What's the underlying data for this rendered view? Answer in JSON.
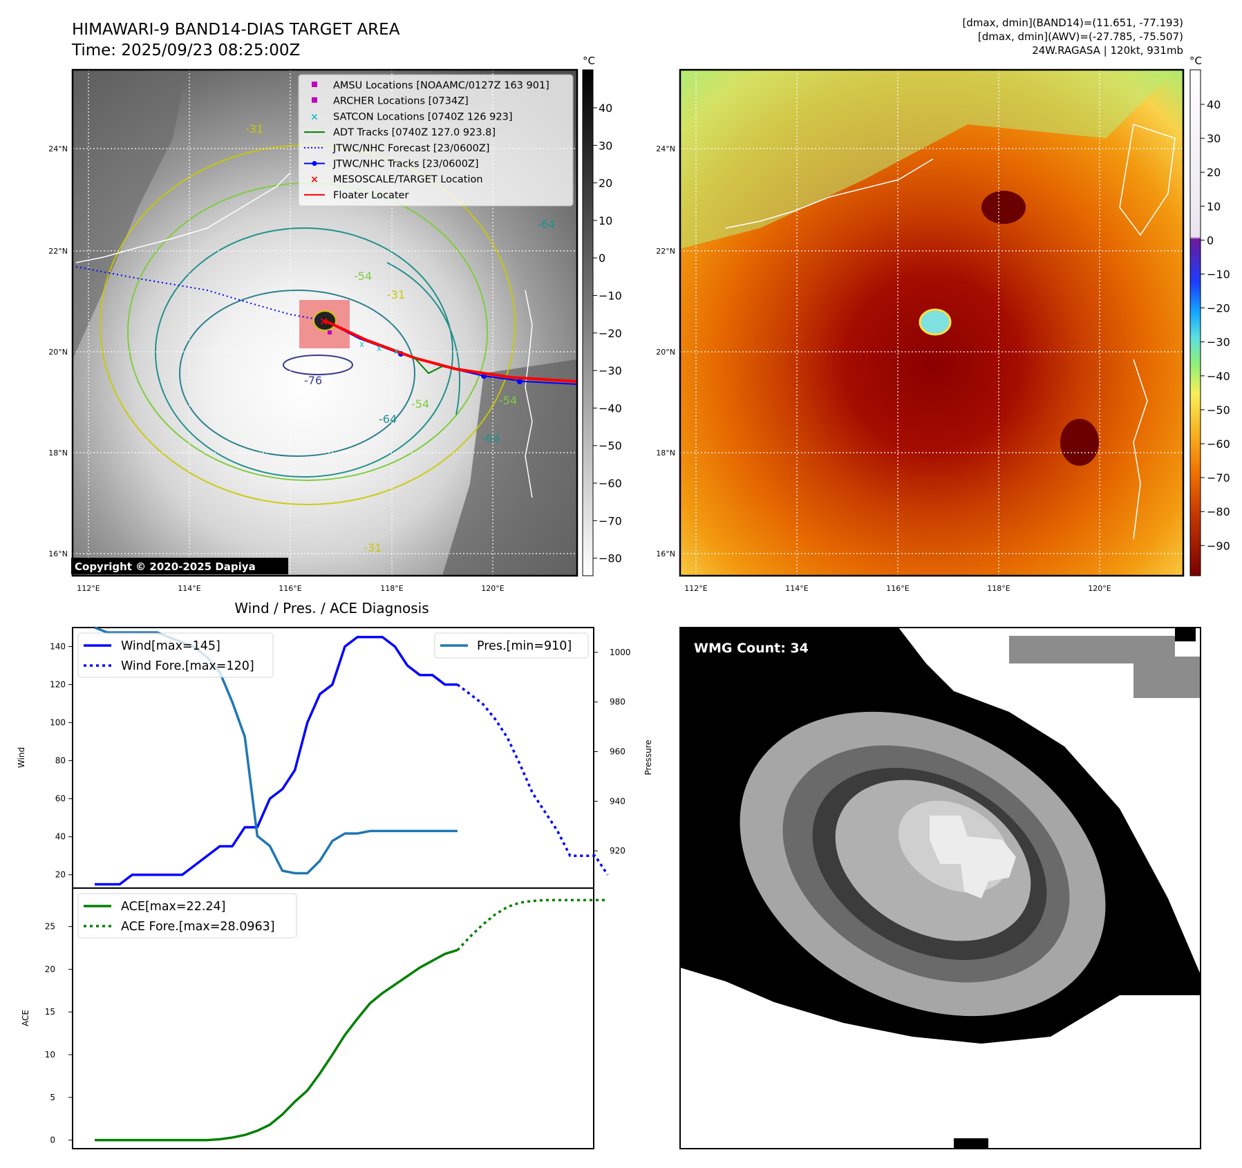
{
  "header": {
    "title_line1": "HIMAWARI-9 BAND14-DIAS TARGET AREA",
    "title_line2": "Time: 2025/09/23 08:25:00Z",
    "info_line1": "[dmax, dmin](BAND14)=(11.651, -77.193)",
    "info_line2": "[dmax, dmin](AWV)=(-27.785, -75.507)",
    "info_line3": "24W.RAGASA | 120kt, 931mb"
  },
  "map": {
    "lon_labels": [
      "112°E",
      "114°E",
      "116°E",
      "118°E",
      "120°E"
    ],
    "lat_labels": [
      "24°N",
      "22°N",
      "20°N",
      "18°N",
      "16°N"
    ],
    "copyright": "Copyright © 2020-2025 Dapiya",
    "contour_labels": [
      "-31",
      "-54",
      "-64",
      "-76",
      "-64",
      "-54",
      "-64",
      "-54",
      "-31",
      "-31"
    ],
    "colorbar_unit": "°C",
    "colorbar_ticks": [
      "40",
      "30",
      "20",
      "10",
      "0",
      "−10",
      "−20",
      "−30",
      "−40",
      "−50",
      "−60",
      "−70",
      "−80"
    ],
    "legend": [
      {
        "label": "AMSU Locations [NOAAMC/0127Z 163 901]",
        "marker": "square",
        "color": "#bf00bf"
      },
      {
        "label": "ARCHER Locations [0734Z]",
        "marker": "square",
        "color": "#bf00bf"
      },
      {
        "label": "SATCON Locations [0740Z 126 923]",
        "marker": "x",
        "color": "#17becf"
      },
      {
        "label": "ADT Tracks [0740Z 127.0 923.8]",
        "marker": "line",
        "color": "#008000"
      },
      {
        "label": "JTWC/NHC Forecast [23/0600Z]",
        "marker": "dotted",
        "color": "#0000ff"
      },
      {
        "label": "JTWC/NHC Tracks [23/0600Z]",
        "marker": "line-dot",
        "color": "#0000ff"
      },
      {
        "label": "MESOSCALE/TARGET Location",
        "marker": "x",
        "color": "#ff0000"
      },
      {
        "label": "Floater Locater",
        "marker": "line",
        "color": "#ff0000"
      }
    ]
  },
  "awv": {
    "lon_labels": [
      "112°E",
      "114°E",
      "116°E",
      "118°E",
      "120°E"
    ],
    "lat_labels": [
      "24°N",
      "22°N",
      "20°N",
      "18°N",
      "16°N"
    ],
    "colorbar_unit": "°C",
    "colorbar_ticks": [
      "40",
      "30",
      "20",
      "10",
      "0",
      "−10",
      "−20",
      "−30",
      "−40",
      "−50",
      "−60",
      "−70",
      "−80",
      "−90"
    ]
  },
  "diag": {
    "title": "Wind / Pres. / ACE Diagnosis",
    "wind_ylabel": "Wind",
    "pres_ylabel": "Pressure",
    "ace_ylabel": "ACE",
    "wind_ticks": [
      "140",
      "120",
      "100",
      "80",
      "60",
      "40",
      "20"
    ],
    "pres_ticks": [
      "1000",
      "980",
      "960",
      "940",
      "920"
    ],
    "ace_ticks": [
      "25",
      "20",
      "15",
      "10",
      "5",
      "0"
    ],
    "legend_wind": "Wind[max=145]",
    "legend_wind_fore": "Wind Fore.[max=120]",
    "legend_pres": "Pres.[min=910]",
    "legend_ace": "ACE[max=22.24]",
    "legend_ace_fore": "ACE Fore.[max=28.0963]"
  },
  "wmg": {
    "label": "WMG Count: 34"
  },
  "chart_data": [
    {
      "type": "line",
      "title": "Wind / Pres. / ACE Diagnosis",
      "ylabel": "Wind",
      "ylim": [
        13,
        150
      ],
      "x": [
        0,
        1,
        2,
        3,
        4,
        5,
        6,
        7,
        8,
        9,
        10,
        11,
        12,
        13,
        14,
        15,
        16,
        17,
        18,
        19,
        20,
        21,
        22,
        23,
        24,
        25,
        26,
        27,
        28,
        29,
        30,
        31,
        32,
        33,
        34,
        35,
        36,
        37,
        38,
        39,
        40,
        41,
        42,
        43,
        44,
        45,
        46
      ],
      "series": [
        {
          "name": "Wind[max=145]",
          "color": "#0000ff",
          "style": "solid",
          "x": [
            0,
            1,
            2,
            3,
            4,
            5,
            6,
            7,
            8,
            9,
            10,
            11,
            12,
            13,
            14,
            15,
            16,
            17,
            18,
            19,
            20,
            21,
            22,
            23,
            24,
            25,
            26,
            27,
            28,
            29
          ],
          "values": [
            15,
            15,
            15,
            20,
            20,
            20,
            20,
            20,
            25,
            30,
            35,
            35,
            45,
            45,
            60,
            65,
            75,
            100,
            115,
            120,
            140,
            145,
            145,
            145,
            140,
            130,
            125,
            125,
            120,
            120
          ]
        },
        {
          "name": "Wind Fore.[max=120]",
          "color": "#0000ff",
          "style": "dotted",
          "x": [
            29,
            30,
            31,
            32,
            33,
            34,
            35,
            36,
            37,
            38,
            39,
            40,
            41
          ],
          "values": [
            120,
            115,
            110,
            102,
            92,
            78,
            63,
            53,
            43,
            30,
            30,
            30,
            20
          ]
        }
      ]
    },
    {
      "type": "line",
      "ylabel": "Pressure",
      "ylim": [
        905,
        1010
      ],
      "series": [
        {
          "name": "Pres.[min=910]",
          "color": "#1f77b4",
          "style": "solid",
          "x": [
            0,
            1,
            2,
            3,
            4,
            5,
            6,
            7,
            8,
            9,
            10,
            11,
            12,
            13,
            14,
            15,
            16,
            17,
            18,
            19,
            20,
            21,
            22,
            23,
            24,
            25,
            26,
            27,
            28,
            29
          ],
          "values": [
            1010,
            1008,
            1008,
            1008,
            1008,
            1008,
            1006,
            1004,
            1002,
            998,
            992,
            980,
            966,
            926,
            922,
            912,
            911,
            911,
            916,
            924,
            927,
            927,
            928,
            928,
            928,
            928,
            928,
            928,
            928,
            928
          ]
        }
      ]
    },
    {
      "type": "line",
      "ylabel": "ACE",
      "ylim": [
        -1,
        29.5
      ],
      "series": [
        {
          "name": "ACE[max=22.24]",
          "color": "#008000",
          "style": "solid",
          "x": [
            0,
            2,
            4,
            6,
            8,
            9,
            10,
            11,
            12,
            13,
            14,
            15,
            16,
            17,
            18,
            19,
            20,
            21,
            22,
            23,
            24,
            25,
            26,
            27,
            28,
            29
          ],
          "values": [
            0,
            0,
            0,
            0,
            0,
            0,
            0.1,
            0.3,
            0.6,
            1.1,
            1.8,
            3.0,
            4.5,
            5.8,
            7.8,
            10.0,
            12.3,
            14.2,
            16.0,
            17.2,
            18.2,
            19.2,
            20.2,
            21.0,
            21.8,
            22.24
          ]
        },
        {
          "name": "ACE Fore.[max=28.0963]",
          "color": "#008000",
          "style": "dotted",
          "x": [
            29,
            30,
            31,
            32,
            33,
            34,
            35,
            36,
            37,
            38,
            39,
            40,
            41
          ],
          "values": [
            22.24,
            23.8,
            25.2,
            26.4,
            27.3,
            27.8,
            28.0,
            28.09,
            28.09,
            28.09,
            28.09,
            28.09,
            28.09
          ]
        }
      ]
    }
  ]
}
